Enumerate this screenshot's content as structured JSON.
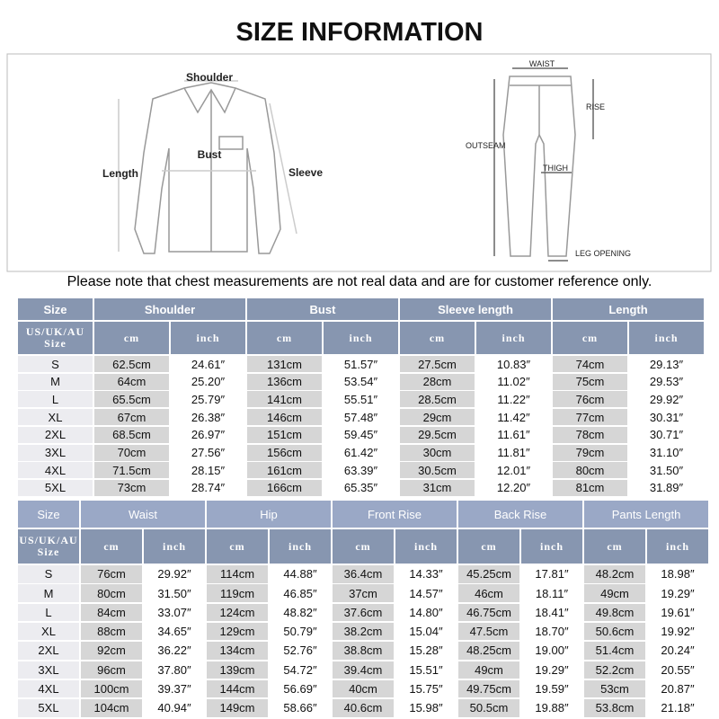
{
  "title": "SIZE INFORMATION",
  "diagram": {
    "shirt_labels": [
      "Shoulder",
      "Bust",
      "Length",
      "Sleeve"
    ],
    "pants_labels": [
      "WAIST",
      "RISE",
      "OUTSEAM",
      "THIGH",
      "LEG OPENING"
    ]
  },
  "note": "Please note that chest measurements are not real data and are for customer reference only.",
  "tables": [
    {
      "header": [
        "Size",
        "Shoulder",
        "Bust",
        "Sleeve length",
        "Length"
      ],
      "size_label": [
        "US/UK/AU",
        "Size"
      ],
      "units": [
        "cm",
        "inch",
        "cm",
        "inch",
        "cm",
        "inch",
        "cm",
        "inch"
      ],
      "rows": [
        [
          "S",
          "62.5cm",
          "24.61″",
          "131cm",
          "51.57″",
          "27.5cm",
          "10.83″",
          "74cm",
          "29.13″"
        ],
        [
          "M",
          "64cm",
          "25.20″",
          "136cm",
          "53.54″",
          "28cm",
          "11.02″",
          "75cm",
          "29.53″"
        ],
        [
          "L",
          "65.5cm",
          "25.79″",
          "141cm",
          "55.51″",
          "28.5cm",
          "11.22″",
          "76cm",
          "29.92″"
        ],
        [
          "XL",
          "67cm",
          "26.38″",
          "146cm",
          "57.48″",
          "29cm",
          "11.42″",
          "77cm",
          "30.31″"
        ],
        [
          "2XL",
          "68.5cm",
          "26.97″",
          "151cm",
          "59.45″",
          "29.5cm",
          "11.61″",
          "78cm",
          "30.71″"
        ],
        [
          "3XL",
          "70cm",
          "27.56″",
          "156cm",
          "61.42″",
          "30cm",
          "11.81″",
          "79cm",
          "31.10″"
        ],
        [
          "4XL",
          "71.5cm",
          "28.15″",
          "161cm",
          "63.39″",
          "30.5cm",
          "12.01″",
          "80cm",
          "31.50″"
        ],
        [
          "5XL",
          "73cm",
          "28.74″",
          "166cm",
          "65.35″",
          "31cm",
          "12.20″",
          "81cm",
          "31.89″"
        ]
      ]
    },
    {
      "header": [
        "Size",
        "Waist",
        "Hip",
        "Front Rise",
        "Back Rise",
        "Pants Length"
      ],
      "size_label": [
        "US/UK/AU",
        "Size"
      ],
      "units": [
        "cm",
        "inch",
        "cm",
        "inch",
        "cm",
        "inch",
        "cm",
        "inch",
        "cm",
        "inch"
      ],
      "rows": [
        [
          "S",
          "76cm",
          "29.92″",
          "114cm",
          "44.88″",
          "36.4cm",
          "14.33″",
          "45.25cm",
          "17.81″",
          "48.2cm",
          "18.98″"
        ],
        [
          "M",
          "80cm",
          "31.50″",
          "119cm",
          "46.85″",
          "37cm",
          "14.57″",
          "46cm",
          "18.11″",
          "49cm",
          "19.29″"
        ],
        [
          "L",
          "84cm",
          "33.07″",
          "124cm",
          "48.82″",
          "37.6cm",
          "14.80″",
          "46.75cm",
          "18.41″",
          "49.8cm",
          "19.61″"
        ],
        [
          "XL",
          "88cm",
          "34.65″",
          "129cm",
          "50.79″",
          "38.2cm",
          "15.04″",
          "47.5cm",
          "18.70″",
          "50.6cm",
          "19.92″"
        ],
        [
          "2XL",
          "92cm",
          "36.22″",
          "134cm",
          "52.76″",
          "38.8cm",
          "15.28″",
          "48.25cm",
          "19.00″",
          "51.4cm",
          "20.24″"
        ],
        [
          "3XL",
          "96cm",
          "37.80″",
          "139cm",
          "54.72″",
          "39.4cm",
          "15.51″",
          "49cm",
          "19.29″",
          "52.2cm",
          "20.55″"
        ],
        [
          "4XL",
          "100cm",
          "39.37″",
          "144cm",
          "56.69″",
          "40cm",
          "15.75″",
          "49.75cm",
          "19.59″",
          "53cm",
          "20.87″"
        ],
        [
          "5XL",
          "104cm",
          "40.94″",
          "149cm",
          "58.66″",
          "40.6cm",
          "15.98″",
          "50.5cm",
          "19.88″",
          "53.8cm",
          "21.18″"
        ]
      ]
    }
  ]
}
